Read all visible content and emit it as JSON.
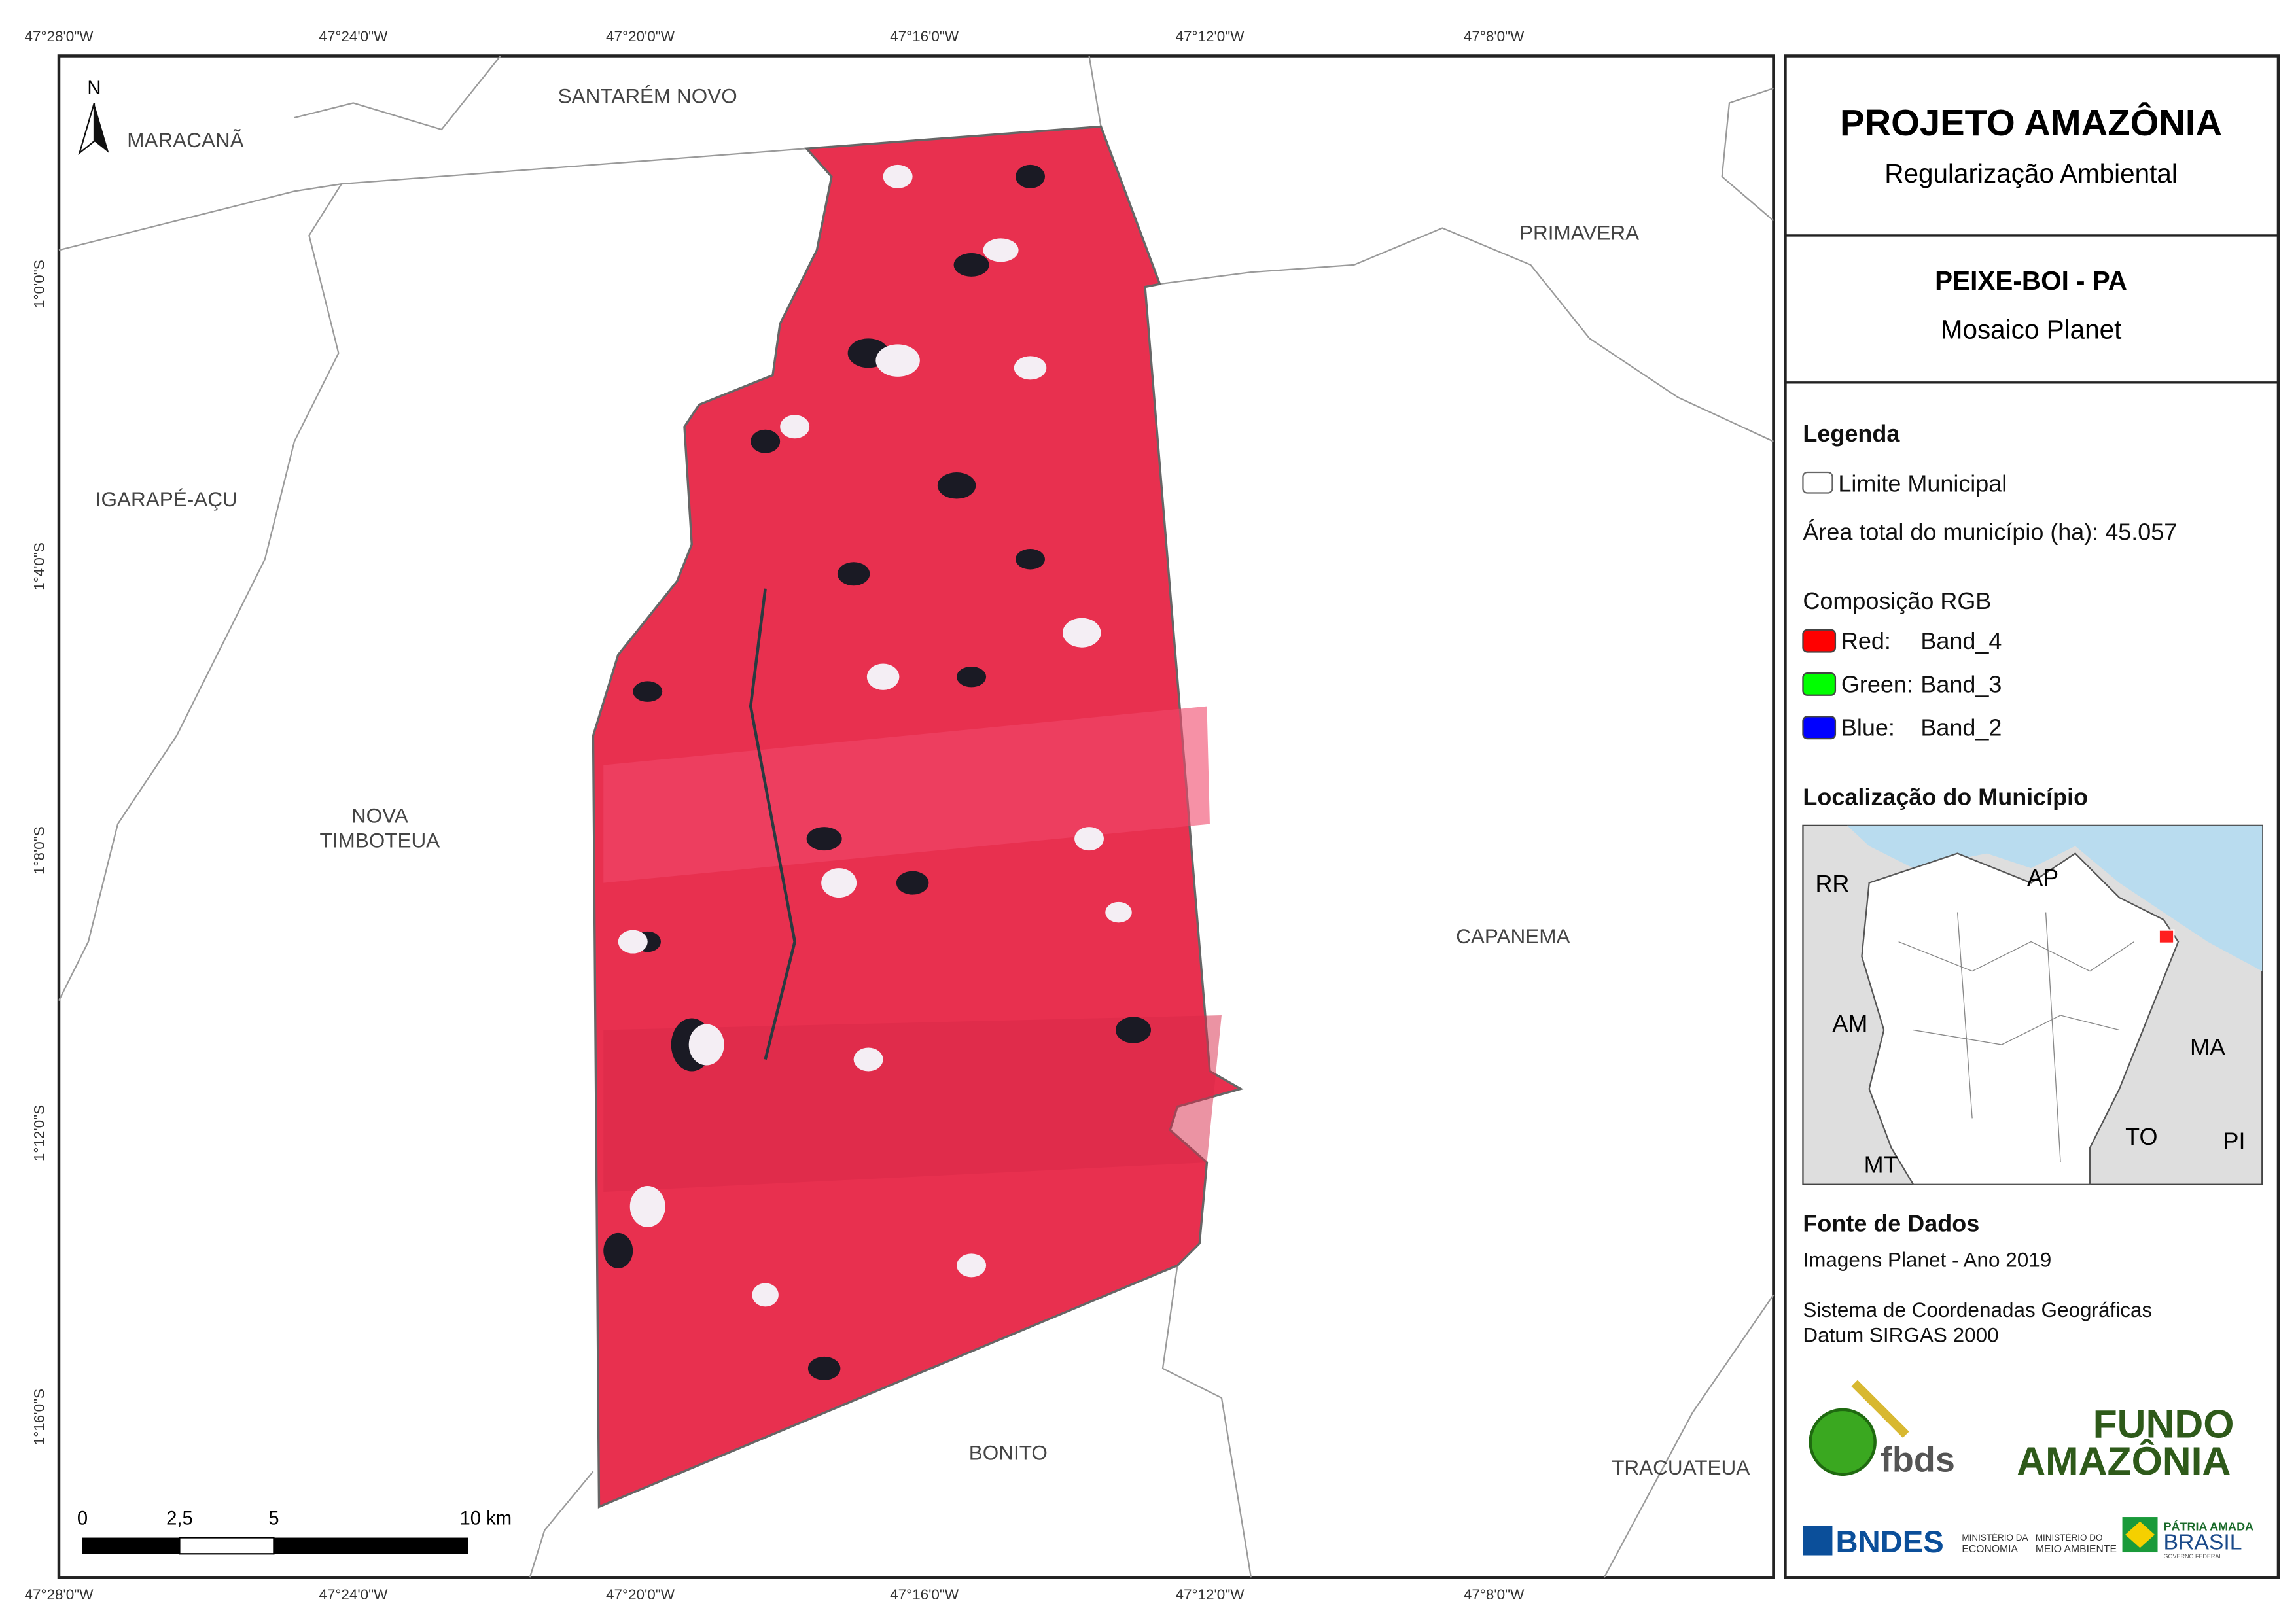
{
  "map": {
    "longitudes": [
      "47°28'0\"W",
      "47°24'0\"W",
      "47°20'0\"W",
      "47°16'0\"W",
      "47°12'0\"W",
      "47°8'0\"W"
    ],
    "latitudes": [
      "1°0'0\"S",
      "1°4'0\"S",
      "1°8'0\"S",
      "1°12'0\"S",
      "1°16'0\"S"
    ],
    "places": [
      "MARACANÃ",
      "SANTARÉM NOVO",
      "PRIMAVERA",
      "IGARAPÉ-AÇU",
      "NOVA",
      "TIMBOTEUA",
      "CAPANEMA",
      "BONITO",
      "TRACUATEUA"
    ],
    "north": "N",
    "scale": [
      "0",
      "2,5",
      "5",
      "10 km"
    ]
  },
  "panel": {
    "title": "PROJETO AMAZÔNIA",
    "subtitle": "Regularização Ambiental",
    "municipality": "PEIXE-BOI - PA",
    "mosaic": "Mosaico Planet",
    "legend": {
      "heading": "Legenda",
      "limit": "Limite Municipal",
      "area": "Área total do município (ha): 45.057",
      "rgb_heading": "Composição RGB",
      "bands": [
        {
          "label": "Red:",
          "band": "Band_4",
          "color": "#ff0000"
        },
        {
          "label": "Green:",
          "band": "Band_3",
          "color": "#00ff00"
        },
        {
          "label": "Blue:",
          "band": "Band_2",
          "color": "#0000ff"
        }
      ]
    },
    "location": {
      "heading": "Localização do Município",
      "states": [
        "RR",
        "AP",
        "AM",
        "MA",
        "TO",
        "PI",
        "MT"
      ]
    },
    "sources": {
      "heading": "Fonte de Dados",
      "lines": [
        "Imagens Planet - Ano 2019",
        "Sistema de Coordenadas Geográficas",
        "Datum SIRGAS 2000"
      ]
    },
    "logos": {
      "fbds": "fbds",
      "fundo": [
        "FUNDO",
        "AMAZÔNIA"
      ],
      "bndes": "BNDES",
      "ministries": [
        "MINISTÉRIO DA",
        "ECONOMIA",
        "MINISTÉRIO DO",
        "MEIO AMBIENTE"
      ],
      "brasil": [
        "PÁTRIA AMADA",
        "BRASIL",
        "GOVERNO FEDERAL"
      ]
    }
  }
}
